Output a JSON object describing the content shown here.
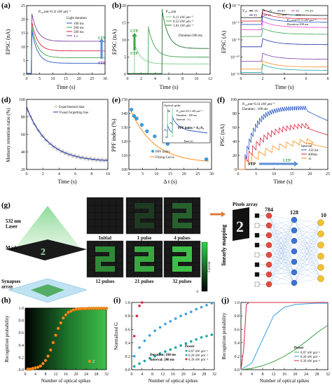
{
  "figure": {
    "colors": {
      "red": "#d7263d",
      "blue": "#2a56c6",
      "purple": "#7b3fa0",
      "green": "#3fa34d",
      "orange": "#ff8c1a",
      "teal": "#1aa7a1",
      "gray": "#8a8a8a"
    },
    "panel_a": {
      "label": "(a)",
      "x_label": "Time (s)",
      "y_label": "EPSC (nA)",
      "inset": "P₃₂₅nm=0.11 nW μm⁻²",
      "legend_title": "Light duration",
      "legend": [
        "100 ms",
        "200 ms",
        "500 ms",
        "1 s"
      ],
      "arrow_top": "LTP",
      "arrow_bottom": "STP",
      "x_ticks": [
        "0",
        "5",
        "10",
        "15",
        "20",
        "25",
        "30"
      ],
      "y_ticks": [
        "0",
        "5",
        "10",
        "15",
        "20",
        "25"
      ]
    },
    "panel_b": {
      "label": "(b)",
      "x_label": "Time (s)",
      "y_label": "EPSC (nA)",
      "inset": "P₃₂₅nm",
      "legend": [
        "0.11 nW μm⁻²",
        "0.52 nW μm⁻²",
        "1.01 nW μm⁻²"
      ],
      "duration": "Duration:100 ms",
      "arrow_top": "LTP",
      "arrow_bottom": "STP",
      "x_ticks": [
        "0",
        "2",
        "4",
        "6",
        "8",
        "10",
        "12"
      ],
      "y_ticks": [
        "0",
        "5",
        "10",
        "15",
        "20"
      ]
    },
    "panel_c": {
      "label": "(c)",
      "x_label": "Time (s)",
      "y_label": "EPSC (A)",
      "vgs": "V₉ₛ",
      "legend": [
        "-5V",
        "-2V",
        "0V",
        "1V",
        "2V",
        "3V",
        "5V",
        "10V",
        "15V"
      ],
      "inset": "P₃₂₅nm=0.11 nW μm⁻²",
      "duration": "Duration:100 ms",
      "x_ticks": [
        "0",
        "2",
        "4",
        "6",
        "8"
      ],
      "y_ticks": [
        "10⁻¹²",
        "10⁻¹⁰",
        "10⁻⁸",
        "10⁻⁶",
        "10⁻⁴"
      ]
    },
    "panel_d": {
      "label": "(d)",
      "x_label": "Time (s)",
      "y_label": "Memory retention ratio (%)",
      "legend": [
        "Experimental data",
        "Visual forgetting line"
      ],
      "x_ticks": [
        "0",
        "2",
        "4",
        "6",
        "8",
        "10"
      ],
      "y_ticks": [
        "20",
        "40",
        "60",
        "80",
        "100"
      ]
    },
    "panel_e": {
      "label": "(e)",
      "x_label": "Δ t (s)",
      "y_label": "PPF index (%)",
      "legend": [
        "PPF index",
        "Fitting Curve"
      ],
      "inset_title": "Optical spike",
      "inset_p": "P₃₂₅nm=0.11 nW μm⁻²",
      "inset_duration": "Duration : 100 ms",
      "inset_interval": "Interval : 3 s",
      "inset_formula": "PPF index = A₂/A₁",
      "inset_x_label": "Time (s)",
      "a1": "A₁",
      "a2": "A₂",
      "dt": "Δt",
      "x_ticks": [
        "0",
        "5",
        "10",
        "15",
        "20",
        "25",
        "30"
      ],
      "y_ticks": [
        "100",
        "110",
        "120",
        "130",
        "140",
        "150"
      ]
    },
    "panel_f": {
      "label": "(f)",
      "x_label": "Time (s)",
      "y_label": "PSC (nA)",
      "inset": "P₃₂₅nm=0.11 nW μm⁻²",
      "duration": "Duration : 100 ms",
      "legend_title": "Interval",
      "legend": [
        "150 ms",
        "400ms",
        "1s"
      ],
      "arrow_left": "STP",
      "arrow_right": "LTP",
      "x_ticks": [
        "0",
        "5",
        "10",
        "15",
        "20",
        "25"
      ],
      "y_ticks": [
        "0",
        "20",
        "40",
        "60",
        "80",
        "100"
      ]
    },
    "panel_g": {
      "label": "(g)",
      "laser": "532 nm\nLaser",
      "mask": "Mask",
      "synapses": "Synapses\narray",
      "pixels_array": "Pixels array",
      "mapping": "linearly mapping",
      "tiles": [
        "Initial",
        "1 pulse",
        "4 pulses",
        "12 pulses",
        "21 pulses",
        "32 pulses"
      ],
      "layers": [
        "784",
        "128",
        "10"
      ],
      "colorbar_label": "Current",
      "colorbar_ticks": [
        "0",
        "0.5",
        "1"
      ],
      "digit": "2"
    },
    "panel_h": {
      "label": "(h)",
      "x_label": "Number of optical spikes",
      "y_label": "Recognition probability",
      "legend": [
        "2"
      ],
      "x_ticks": [
        "0",
        "4",
        "8",
        "12",
        "16",
        "20",
        "24",
        "28",
        "32"
      ],
      "y_ticks": [
        "0.0",
        "0.2",
        "0.4",
        "0.6",
        "0.8",
        "1.0"
      ]
    },
    "panel_i": {
      "label": "(i)",
      "x_label": "Number of optical spikes",
      "y_label": "Normalized G",
      "legend_title": "Power",
      "legend": [
        "0.07 nW μm⁻²",
        "0.20 nW μm⁻²",
        "0.39 nW μm⁻²"
      ],
      "duration": "Duration: 100 ms",
      "interval": "Interval: 200 ms",
      "x_ticks": [
        "0",
        "4",
        "8",
        "12",
        "16",
        "20",
        "24",
        "28",
        "32"
      ],
      "y_ticks": [
        "0.0",
        "0.2",
        "0.4",
        "0.6",
        "0.8",
        "1.0"
      ]
    },
    "panel_j": {
      "label": "(j)",
      "x_label": "Number of optical spikes",
      "y_label": "Recognition probability",
      "legend_title": "Power",
      "legend": [
        "0.07 nW μm⁻²",
        "0.20 nW μm⁻²",
        "0.39 nW μm⁻²"
      ],
      "x_ticks": [
        "0",
        "4",
        "8",
        "12",
        "16",
        "20",
        "24",
        "28",
        "32"
      ],
      "y_ticks": [
        "0.0",
        "0.2",
        "0.4",
        "0.6",
        "0.8",
        "1.0"
      ]
    }
  },
  "chart_data": [
    {
      "panel": "a",
      "type": "line",
      "x_range": [
        0,
        30
      ],
      "y_range": [
        0,
        25
      ],
      "series": [
        {
          "name": "100 ms",
          "peak": 16,
          "plateau": 4
        },
        {
          "name": "200 ms",
          "peak": 17.5,
          "plateau": 6
        },
        {
          "name": "500 ms",
          "peak": 19,
          "plateau": 8.5
        },
        {
          "name": "1 s",
          "peak": 22,
          "plateau": 12
        }
      ]
    },
    {
      "panel": "b",
      "type": "line",
      "x_range": [
        0,
        12
      ],
      "y_range": [
        0,
        20
      ],
      "series": [
        {
          "name": "0.11 nW μm⁻²"
        },
        {
          "name": "0.52 nW μm⁻²"
        },
        {
          "name": "1.01 nW μm⁻²"
        }
      ]
    },
    {
      "panel": "c",
      "type": "line",
      "x_range": [
        0,
        8
      ],
      "y_scale": "log",
      "series": [
        {
          "name": "-5V"
        },
        {
          "name": "-2V"
        },
        {
          "name": "0V"
        },
        {
          "name": "1V"
        },
        {
          "name": "2V"
        },
        {
          "name": "3V"
        },
        {
          "name": "5V"
        },
        {
          "name": "10V"
        },
        {
          "name": "15V"
        }
      ]
    },
    {
      "panel": "d",
      "type": "scatter",
      "x_range": [
        0,
        10
      ],
      "y_range": [
        20,
        100
      ],
      "series": [
        {
          "name": "Experimental data",
          "x": [
            0,
            1,
            2,
            3,
            4,
            5,
            6,
            7,
            8,
            9,
            10
          ],
          "y": [
            100,
            82,
            70,
            61,
            55,
            50,
            46,
            43,
            40,
            38,
            36
          ]
        }
      ]
    },
    {
      "panel": "e",
      "type": "scatter",
      "x_range": [
        0,
        30
      ],
      "y_range": [
        100,
        150
      ],
      "series": [
        {
          "name": "PPF index",
          "x": [
            1,
            2,
            3,
            5,
            7,
            10,
            15,
            30
          ],
          "y": [
            147,
            142,
            140,
            135,
            130,
            126,
            120,
            108
          ]
        }
      ]
    },
    {
      "panel": "f",
      "type": "line",
      "x_range": [
        0,
        25
      ],
      "y_range": [
        0,
        100
      ],
      "series": [
        {
          "name": "150 ms"
        },
        {
          "name": "400ms"
        },
        {
          "name": "1s"
        }
      ]
    },
    {
      "panel": "h",
      "type": "scatter",
      "x_range": [
        0,
        32
      ],
      "y_range": [
        0,
        1
      ],
      "series": [
        {
          "name": "2",
          "x": [
            1,
            2,
            3,
            4,
            5,
            6,
            7,
            8,
            9,
            10,
            11,
            12,
            13,
            14,
            15,
            16,
            17,
            18,
            19,
            20,
            21,
            22,
            23,
            24,
            25,
            26,
            27,
            28,
            29,
            30,
            31,
            32
          ],
          "y": [
            0.01,
            0.01,
            0.02,
            0.03,
            0.04,
            0.06,
            0.1,
            0.15,
            0.22,
            0.32,
            0.44,
            0.56,
            0.67,
            0.76,
            0.84,
            0.89,
            0.93,
            0.95,
            0.97,
            0.98,
            0.985,
            0.99,
            0.99,
            0.99,
            0.995,
            0.995,
            0.995,
            0.995,
            0.995,
            0.995,
            0.995,
            0.995
          ]
        }
      ]
    },
    {
      "panel": "i",
      "type": "scatter",
      "x_range": [
        0,
        32
      ],
      "y_range": [
        0,
        1
      ],
      "series": [
        {
          "name": "0.07 nW μm⁻²",
          "x": [
            1,
            3,
            5,
            7,
            9,
            11,
            13,
            15,
            17,
            19,
            21,
            23,
            25,
            27,
            29,
            31
          ],
          "y": [
            0.05,
            0.09,
            0.13,
            0.17,
            0.2,
            0.24,
            0.27,
            0.3,
            0.33,
            0.36,
            0.39,
            0.42,
            0.45,
            0.48,
            0.5,
            0.52
          ]
        },
        {
          "name": "0.20 nW μm⁻²",
          "x": [
            1,
            3,
            5,
            7,
            9,
            11,
            13,
            15,
            17,
            19,
            21,
            23,
            25,
            27,
            29,
            31
          ],
          "y": [
            0.2,
            0.33,
            0.43,
            0.51,
            0.58,
            0.63,
            0.68,
            0.72,
            0.76,
            0.8,
            0.83,
            0.86,
            0.9,
            0.93,
            0.96,
            0.99
          ]
        },
        {
          "name": "0.39 nW μm⁻²",
          "x": [
            1,
            2,
            3,
            4
          ],
          "y": [
            0.5,
            0.8,
            0.95,
            1.0
          ]
        }
      ]
    },
    {
      "panel": "j",
      "type": "line",
      "x_range": [
        0,
        32
      ],
      "y_range": [
        0,
        1
      ],
      "series": [
        {
          "name": "0.07 nW μm⁻²",
          "x": [
            0,
            4,
            8,
            12,
            16,
            20,
            24,
            28,
            32
          ],
          "y": [
            0.0,
            0.02,
            0.06,
            0.12,
            0.2,
            0.3,
            0.42,
            0.55,
            0.66
          ]
        },
        {
          "name": "0.20 nW μm⁻²",
          "x": [
            0,
            4,
            8,
            12,
            16,
            20,
            24,
            28,
            32
          ],
          "y": [
            0.0,
            0.1,
            0.45,
            0.8,
            0.93,
            0.97,
            0.98,
            0.99,
            0.99
          ]
        },
        {
          "name": "0.39 nW μm⁻²",
          "x": [
            0,
            1,
            2,
            3,
            4,
            8,
            16,
            24,
            32
          ],
          "y": [
            0.0,
            0.3,
            0.97,
            1.0,
            1.0,
            1.0,
            1.0,
            1.0,
            1.0
          ]
        }
      ]
    }
  ]
}
